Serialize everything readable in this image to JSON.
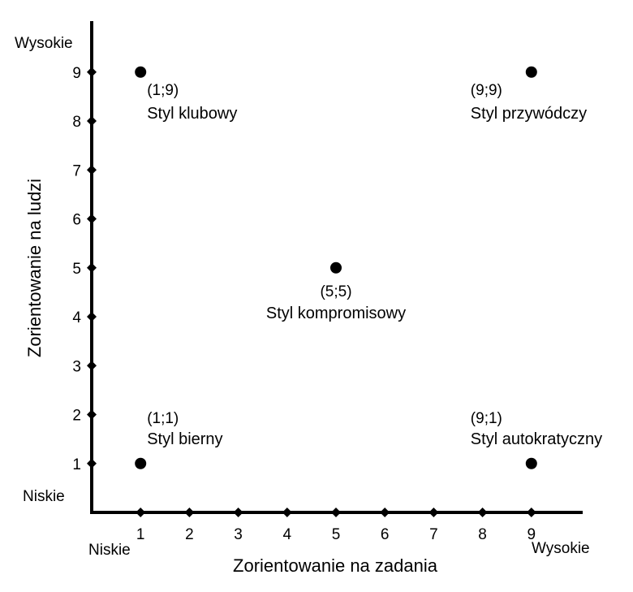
{
  "chart_data": {
    "type": "scatter",
    "title": "",
    "xlabel": "Zorientowanie na zadania",
    "ylabel": "Zorientowanie na ludzi",
    "x_ticks": [
      1,
      2,
      3,
      4,
      5,
      6,
      7,
      8,
      9
    ],
    "y_ticks": [
      1,
      2,
      3,
      4,
      5,
      6,
      7,
      8,
      9
    ],
    "xlim": [
      0,
      10
    ],
    "ylim": [
      0,
      10
    ],
    "grid": false,
    "corner_labels": {
      "x_low": "Niskie",
      "x_high": "Wysokie",
      "y_low": "Niskie",
      "y_high": "Wysokie"
    },
    "points": [
      {
        "x": 1,
        "y": 9,
        "coord": "(1;9)",
        "label": "Styl klubowy"
      },
      {
        "x": 9,
        "y": 9,
        "coord": "(9;9)",
        "label": "Styl przywódczy"
      },
      {
        "x": 5,
        "y": 5,
        "coord": "(5;5)",
        "label": "Styl kompromisowy"
      },
      {
        "x": 1,
        "y": 1,
        "coord": "(1;1)",
        "label": "Styl bierny"
      },
      {
        "x": 9,
        "y": 1,
        "coord": "(9;1)",
        "label": "Styl autokratyczny"
      }
    ]
  }
}
